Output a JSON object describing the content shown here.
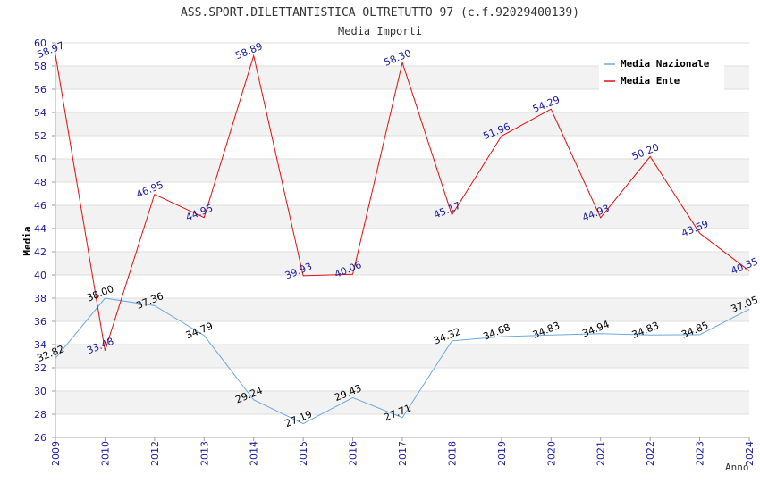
{
  "chart_data": {
    "type": "line",
    "title": "ASS.SPORT.DILETTANTISTICA OLTRETUTTO 97 (c.f.92029400139)",
    "subtitle": "Media Importi",
    "xlabel": "Anno",
    "ylabel": "Media",
    "ylim": [
      26,
      60
    ],
    "yticks": [
      "26",
      "28",
      "30",
      "32",
      "34",
      "36",
      "38",
      "40",
      "42",
      "44",
      "46",
      "48",
      "50",
      "52",
      "54",
      "56",
      "58",
      "60"
    ],
    "categories": [
      "2009",
      "2010",
      "2012",
      "2013",
      "2014",
      "2015",
      "2016",
      "2017",
      "2018",
      "2019",
      "2020",
      "2021",
      "2022",
      "2023",
      "2024"
    ],
    "series": [
      {
        "name": "Media Nazionale",
        "color": "#6aa8e0",
        "values": [
          32.82,
          38.0,
          37.36,
          34.79,
          29.24,
          27.19,
          29.43,
          27.71,
          34.32,
          34.68,
          34.83,
          34.94,
          34.83,
          34.85,
          37.05
        ],
        "labels": [
          "32.82",
          "38.00",
          "37.36",
          "34.79",
          "29.24",
          "27.19",
          "29.43",
          "27.71",
          "34.32",
          "34.68",
          "34.83",
          "34.94",
          "34.83",
          "34.85",
          "37.05"
        ]
      },
      {
        "name": "Media Ente",
        "color": "#e01010",
        "values": [
          58.97,
          33.48,
          46.95,
          44.95,
          58.89,
          39.93,
          40.06,
          58.3,
          45.17,
          51.96,
          54.29,
          44.93,
          50.2,
          43.59,
          40.35
        ],
        "labels": [
          "58.97",
          "33.48",
          "46.95",
          "44.95",
          "58.89",
          "39.93",
          "40.06",
          "58.30",
          "45.17",
          "51.96",
          "54.29",
          "44.93",
          "50.20",
          "43.59",
          "40.35"
        ]
      }
    ],
    "grid": true,
    "legend": "top-right"
  }
}
